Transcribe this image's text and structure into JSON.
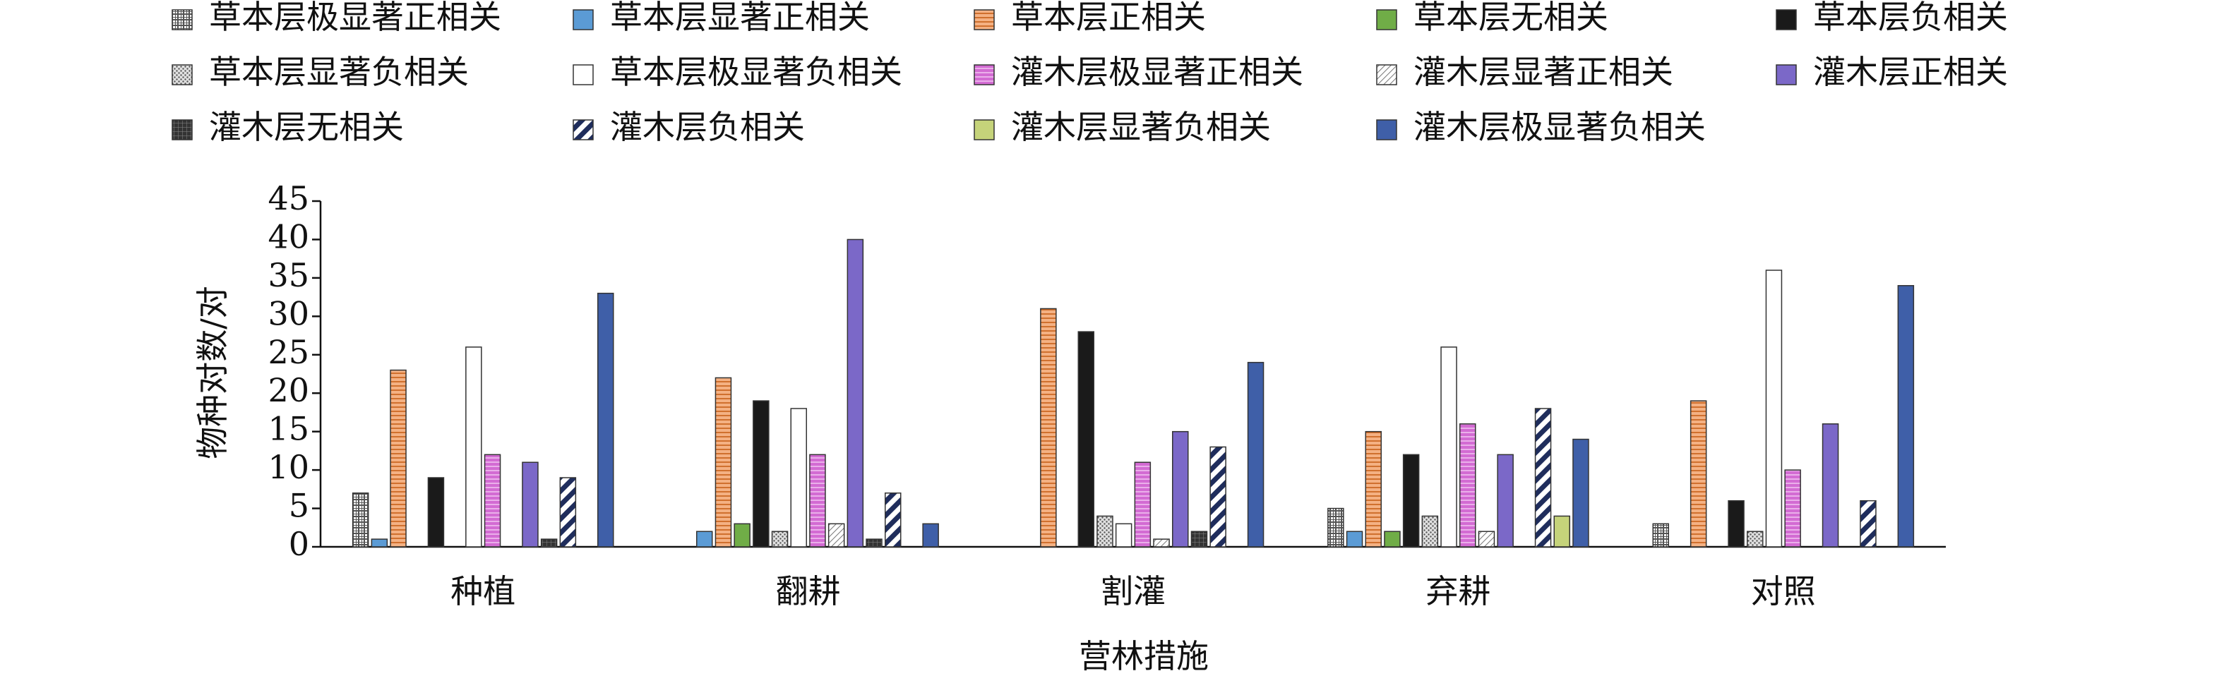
{
  "chart_data": {
    "type": "bar",
    "x_label": "营林措施",
    "y_label": "物种对数/对",
    "categories": [
      "种植",
      "翻耕",
      "割灌",
      "弃耕",
      "对照"
    ],
    "ylim": [
      0,
      45
    ],
    "yticks": [
      0,
      5,
      10,
      15,
      20,
      25,
      30,
      35,
      40,
      45
    ],
    "series": [
      {
        "name": "草本层极显著正相关",
        "color": "#808080",
        "values": [
          7,
          0,
          0,
          5,
          3
        ]
      },
      {
        "name": "草本层显著正相关",
        "color": "#5b9bd5",
        "values": [
          1,
          2,
          0,
          2,
          0
        ]
      },
      {
        "name": "草本层正相关",
        "color": "#f4b183",
        "values": [
          23,
          22,
          31,
          15,
          19
        ]
      },
      {
        "name": "草本层无相关",
        "color": "#70ad47",
        "values": [
          0,
          3,
          0,
          2,
          0
        ]
      },
      {
        "name": "草本层负相关",
        "color": "#1a1a1a",
        "values": [
          9,
          19,
          28,
          12,
          6
        ]
      },
      {
        "name": "草本层显著负相关",
        "color": "#a6a6a6",
        "values": [
          0,
          2,
          4,
          4,
          2
        ]
      },
      {
        "name": "草本层极显著负相关",
        "color": "#ffffff",
        "values": [
          26,
          18,
          3,
          26,
          36
        ]
      },
      {
        "name": "灌木层极显著正相关",
        "color": "#d36bd3",
        "values": [
          12,
          12,
          11,
          16,
          10
        ]
      },
      {
        "name": "灌木层显著正相关",
        "color": "#bfbfbf",
        "values": [
          0,
          3,
          1,
          2,
          0
        ]
      },
      {
        "name": "灌木层正相关",
        "color": "#7b68c8",
        "values": [
          11,
          40,
          15,
          12,
          16
        ]
      },
      {
        "name": "灌木层无相关",
        "color": "#333333",
        "values": [
          1,
          1,
          2,
          0,
          0
        ]
      },
      {
        "name": "灌木层负相关",
        "color": "#1f2d5c",
        "values": [
          9,
          7,
          13,
          18,
          6
        ]
      },
      {
        "name": "灌木层显著负相关",
        "color": "#c5d37a",
        "values": [
          0,
          0,
          0,
          4,
          0
        ]
      },
      {
        "name": "灌木层极显著负相关",
        "color": "#3f5fa8",
        "values": [
          33,
          3,
          24,
          14,
          34
        ]
      }
    ]
  }
}
